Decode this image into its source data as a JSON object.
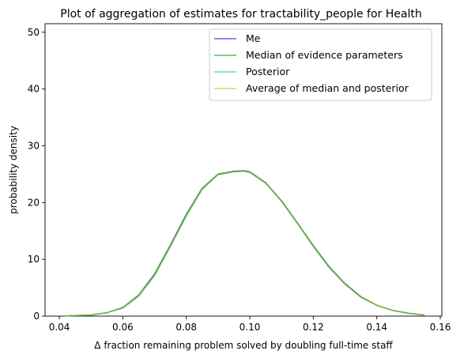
{
  "chart_data": {
    "type": "line",
    "title": "Plot of aggregation of estimates for tractability_people for Health",
    "xlabel": "Δ fraction remaining problem solved by doubling full-time staff",
    "ylabel": "probability density",
    "xlim": [
      0.0355,
      0.1605
    ],
    "ylim": [
      0,
      51.5
    ],
    "xticks": [
      0.04,
      0.06,
      0.08,
      0.1,
      0.12,
      0.14,
      0.16
    ],
    "xtick_labels": [
      "0.04",
      "0.06",
      "0.08",
      "0.10",
      "0.12",
      "0.14",
      "0.16"
    ],
    "yticks": [
      0,
      10,
      20,
      30,
      40,
      50
    ],
    "ytick_labels": [
      "0",
      "10",
      "20",
      "30",
      "40",
      "50"
    ],
    "grid": false,
    "legend_position": "top-right",
    "x": [
      0.041,
      0.045,
      0.05,
      0.055,
      0.06,
      0.065,
      0.07,
      0.075,
      0.08,
      0.085,
      0.09,
      0.095,
      0.098,
      0.1,
      0.105,
      0.11,
      0.115,
      0.12,
      0.125,
      0.13,
      0.135,
      0.14,
      0.145,
      0.15,
      0.155
    ],
    "series": [
      {
        "name": "Me",
        "color": "#0000ff",
        "values": [
          0.0,
          0.1,
          0.2,
          0.6,
          1.5,
          3.7,
          7.4,
          12.5,
          17.9,
          22.5,
          25.0,
          25.5,
          25.6,
          25.4,
          23.5,
          20.3,
          16.4,
          12.4,
          8.7,
          5.7,
          3.4,
          1.9,
          1.0,
          0.5,
          0.2
        ]
      },
      {
        "name": "Median of evidence parameters",
        "color": "#008000",
        "values": [
          0.0,
          0.1,
          0.2,
          0.6,
          1.5,
          3.7,
          7.4,
          12.5,
          17.9,
          22.5,
          25.0,
          25.5,
          25.6,
          25.4,
          23.5,
          20.3,
          16.4,
          12.4,
          8.7,
          5.7,
          3.4,
          1.9,
          1.0,
          0.5,
          0.2
        ]
      },
      {
        "name": "Posterior",
        "color": "#00bfbf",
        "values": [
          0.0,
          0.1,
          0.2,
          0.6,
          1.4,
          3.5,
          7.1,
          12.2,
          17.6,
          22.3,
          24.9,
          25.4,
          25.5,
          25.3,
          23.4,
          20.2,
          16.3,
          12.2,
          8.5,
          5.6,
          3.3,
          1.9,
          1.0,
          0.5,
          0.2
        ]
      },
      {
        "name": "Average of median and posterior",
        "color": "#bfbf00",
        "values": [
          0.0,
          0.1,
          0.2,
          0.6,
          1.4,
          3.6,
          7.2,
          12.3,
          17.7,
          22.4,
          24.9,
          25.4,
          25.5,
          25.3,
          23.4,
          20.2,
          16.3,
          12.3,
          8.6,
          5.6,
          3.3,
          1.9,
          1.0,
          0.5,
          0.2
        ]
      }
    ]
  }
}
